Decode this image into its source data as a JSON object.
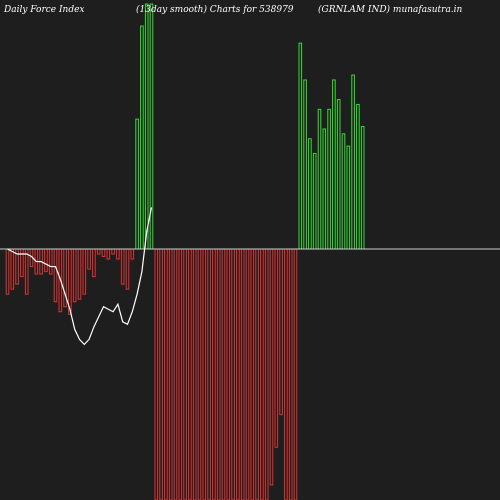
{
  "header": {
    "left": "Daily Force  Index",
    "center": "(13day smooth) Charts for 538979",
    "right": "(GRNLAM IND) munafasutra.in"
  },
  "chart_data": {
    "type": "bar",
    "colors": {
      "background": "#1e1e1e",
      "positive": "#33dd33",
      "negative": "#dd3333",
      "line": "#ffffff",
      "zero_line": "#cccccc"
    },
    "ylim": [
      -100,
      100
    ],
    "grid": false,
    "values": [
      -18,
      -16,
      -14,
      -11,
      -18,
      -7,
      -10,
      -10,
      -9,
      -10,
      -21,
      -25,
      -23,
      -26,
      -21,
      -20,
      -18,
      -8,
      -11,
      -2,
      -3,
      -4,
      -2,
      -4,
      -14,
      -16,
      -4,
      53,
      91,
      100,
      100,
      -100,
      -100,
      -100,
      -100,
      -100,
      -100,
      -100,
      -100,
      -100,
      -100,
      -100,
      -100,
      -100,
      -100,
      -100,
      -100,
      -100,
      -100,
      -100,
      -100,
      -100,
      -100,
      -100,
      -100,
      -94,
      -79,
      -66,
      -100,
      -100,
      -100,
      84,
      69,
      45,
      39,
      57,
      49,
      57,
      69,
      61,
      47,
      42,
      71,
      59,
      50
    ],
    "smooth_values": [
      0,
      -1,
      -2,
      -2,
      -2,
      -3,
      -5,
      -5,
      -6,
      -7,
      -7,
      -12,
      -18,
      -24,
      -32,
      -36,
      -38,
      -36,
      -31,
      -27,
      -23,
      -24,
      -25,
      -22,
      -29,
      -30,
      -25,
      -18,
      -9,
      7,
      17
    ]
  }
}
